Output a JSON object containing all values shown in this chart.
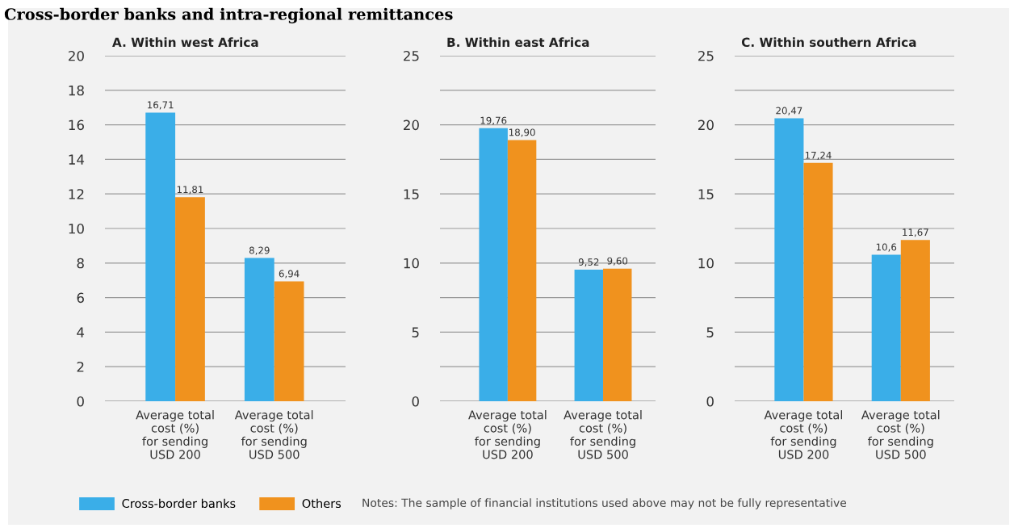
{
  "chart_data": [
    {
      "type": "bar",
      "title": "A. Within west Africa",
      "annotations": [
        "Cross-border banks and intra-regional remittances"
      ],
      "categories": [
        "Average total\ncost (%)\nfor sending\nUSD 200",
        "Average total\ncost (%)\nfor sending\nUSD 500"
      ],
      "series": [
        {
          "name": "Cross-border banks",
          "color": "#3aaee8",
          "values": [
            16.71,
            8.29
          ],
          "value_labels": [
            "16,71",
            "8,29"
          ]
        },
        {
          "name": "Others",
          "color": "#f0921e",
          "values": [
            11.81,
            6.94
          ],
          "value_labels": [
            "11,81",
            "6,94"
          ]
        }
      ],
      "ylim": [
        0,
        20
      ],
      "yticks": [
        0,
        2,
        4,
        6,
        8,
        10,
        12,
        14,
        16,
        18,
        20
      ],
      "grid": "y",
      "legend": "bottom"
    },
    {
      "type": "bar",
      "title": "B. Within east Africa",
      "categories": [
        "Average total\ncost (%)\nfor sending\nUSD 200",
        "Average total\ncost (%)\nfor sending\nUSD 500"
      ],
      "series": [
        {
          "color": "#3aaee8",
          "values": [
            19.76,
            9.52
          ],
          "value_labels": [
            "19,76",
            "9,52"
          ]
        },
        {
          "color": "#f0921e",
          "values": [
            18.9,
            9.6
          ],
          "value_labels": [
            "18,90",
            "9,60"
          ]
        }
      ],
      "ylim": [
        0,
        25
      ],
      "yticks": [
        0,
        {
          "value": 2.5,
          "label": null
        },
        5,
        {
          "value": 7.5,
          "label": null
        },
        10,
        {
          "value": 12.5,
          "label": null
        },
        15,
        {
          "value": 17.5,
          "label": null
        },
        20,
        {
          "value": 22.5,
          "label": null
        },
        25
      ],
      "grid": "y"
    },
    {
      "type": "bar",
      "title": "C. Within southern Africa",
      "annotations": [
        "Notes: The sample of financial institutions used above may not be fully representative"
      ],
      "categories": [
        "Average total\ncost (%)\nfor sending\nUSD 200",
        "Average total\ncost (%)\nfor sending\nUSD 500"
      ],
      "series": [
        {
          "color": "#3aaee8",
          "values": [
            20.47,
            10.6
          ],
          "value_labels": [
            "20,47",
            "10,6"
          ]
        },
        {
          "color": "#f0921e",
          "values": [
            17.24,
            11.67
          ],
          "value_labels": [
            "17,24",
            "11,67"
          ]
        }
      ],
      "ylim": [
        0,
        25
      ],
      "yticks": [
        0,
        {
          "value": 2.5,
          "label": null
        },
        5,
        {
          "value": 7.5,
          "label": null
        },
        10,
        {
          "value": 12.5,
          "label": null
        },
        15,
        {
          "value": 17.5,
          "label": null
        },
        20,
        {
          "value": 22.5,
          "label": null
        },
        25
      ],
      "grid": "y"
    }
  ]
}
